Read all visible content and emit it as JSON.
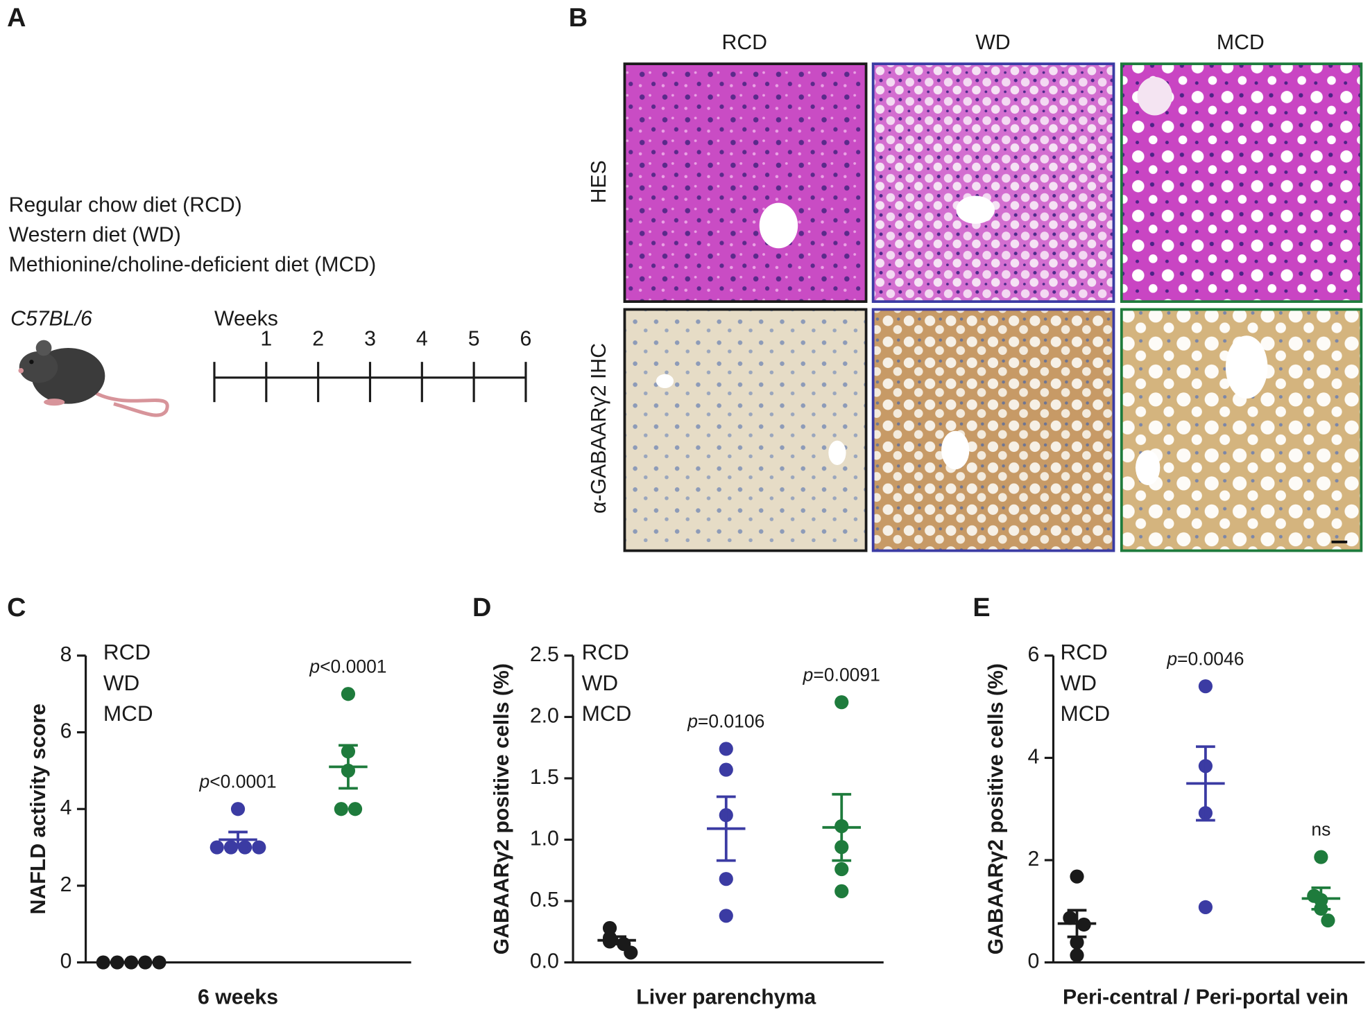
{
  "panel_labels": [
    "A",
    "B",
    "C",
    "D",
    "E"
  ],
  "diets": [
    {
      "text": "Regular chow diet (RCD)",
      "color": "#1a1a1a"
    },
    {
      "text": "Western diet (WD)",
      "color": "#3b3ba3"
    },
    {
      "text": "Methionine/choline-deficient diet (MCD)",
      "color": "#1e7b3c"
    }
  ],
  "strain": "C57BL/6",
  "timeline": {
    "label": "Weeks",
    "ticks": [
      1,
      2,
      3,
      4,
      5,
      6
    ]
  },
  "histology": {
    "columns": [
      {
        "label": "RCD",
        "color": "#1a1a1a"
      },
      {
        "label": "WD",
        "color": "#3b3ba3"
      },
      {
        "label": "MCD",
        "color": "#1e7b3c"
      }
    ],
    "rows": [
      "HES",
      "α-GABAARγ2  IHC"
    ]
  },
  "chart_data": [
    {
      "type": "dot",
      "ylabel": "NAFLD activity score",
      "xlabel": "6 weeks",
      "ylim": [
        0,
        8
      ],
      "yticks": [
        0,
        2,
        4,
        6,
        8
      ],
      "series": [
        {
          "name": "RCD",
          "color": "#1a1a1a",
          "values": [
            0,
            0,
            0,
            0,
            0
          ],
          "mean": 0,
          "sem": 0
        },
        {
          "name": "WD",
          "color": "#3b3ba3",
          "values": [
            4,
            3,
            3,
            3,
            3
          ],
          "mean": 3.2,
          "sem": 0.2,
          "p_label": "p<0.0001"
        },
        {
          "name": "MCD",
          "color": "#1e7b3c",
          "values": [
            7,
            5.5,
            5,
            4,
            4
          ],
          "mean": 5.1,
          "sem": 0.56,
          "p_label": "p<0.0001"
        }
      ]
    },
    {
      "type": "dot",
      "ylabel": "GABAARγ2 positive cells (%)",
      "xlabel": "Liver parenchyma",
      "ylim": [
        0,
        2.5
      ],
      "yticks": [
        {
          "value": 0,
          "label": "0.0"
        },
        0.5,
        {
          "value": 1,
          "label": "1.0"
        },
        1.5,
        {
          "value": 2,
          "label": "2.0"
        },
        2.5
      ],
      "series": [
        {
          "name": "RCD",
          "color": "#1a1a1a",
          "values": [
            0.28,
            0.2,
            0.17,
            0.15,
            0.08
          ],
          "mean": 0.18,
          "sem": 0.03
        },
        {
          "name": "WD",
          "color": "#3b3ba3",
          "values": [
            1.74,
            1.57,
            1.2,
            0.68,
            0.38
          ],
          "mean": 1.09,
          "sem": 0.26,
          "p_label": "p=0.0106"
        },
        {
          "name": "MCD",
          "color": "#1e7b3c",
          "values": [
            2.12,
            1.11,
            0.94,
            0.76,
            0.58
          ],
          "mean": 1.1,
          "sem": 0.27,
          "p_label": "p=0.0091"
        }
      ]
    },
    {
      "type": "dot",
      "ylabel": "GABAARγ2 positive cells (%)",
      "xlabel": "Peri-central / Peri-portal vein",
      "ylim": [
        0,
        6
      ],
      "yticks": [
        0,
        2,
        4,
        6
      ],
      "series": [
        {
          "name": "RCD",
          "color": "#1a1a1a",
          "values": [
            1.68,
            0.87,
            0.74,
            0.39,
            0.14
          ],
          "mean": 0.76,
          "sem": 0.26
        },
        {
          "name": "WD",
          "color": "#3b3ba3",
          "values": [
            5.4,
            3.84,
            2.92,
            1.08
          ],
          "mean": 3.5,
          "sem": 0.72,
          "p_label": "p=0.0046"
        },
        {
          "name": "MCD",
          "color": "#1e7b3c",
          "values": [
            2.06,
            1.3,
            1.22,
            1.05,
            0.82
          ],
          "mean": 1.25,
          "sem": 0.21,
          "p_label": "ns"
        }
      ]
    }
  ]
}
